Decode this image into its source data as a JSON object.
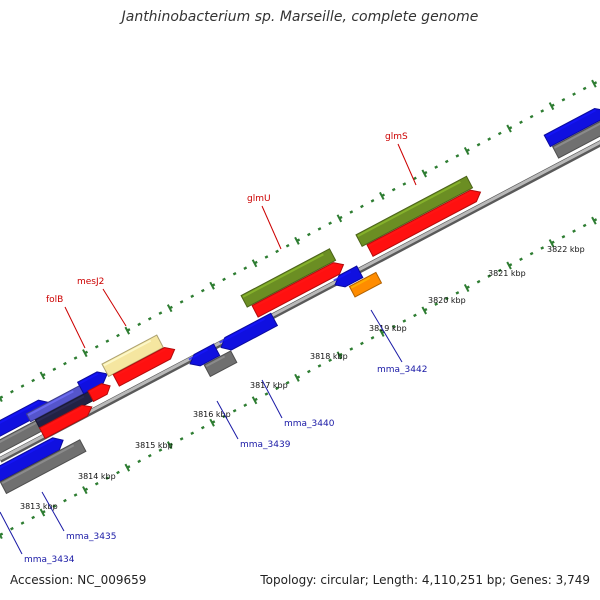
{
  "title": "Janthinobacterium sp. Marseille, complete genome",
  "footer": {
    "accession": "Accession: NC_009659",
    "summary": "Topology: circular; Length: 4,110,251 bp; Genes: 3,749"
  },
  "colors": {
    "background": "#ffffff",
    "backbone": "#8c8c8c",
    "tick": "#2e7d32",
    "gene_label_red": "#cc0000",
    "gene_label_blue": "#1a1aa6",
    "kbp_label": "#111111"
  },
  "scale_labels": [
    "3813 kbp",
    "3814 kbp",
    "3815 kbp",
    "3816 kbp",
    "3817 kbp",
    "3818 kbp",
    "3819 kbp",
    "3820 kbp",
    "3821 kbp",
    "3822 kbp"
  ],
  "named_genes": [
    "folB",
    "mesJ2",
    "glmU",
    "glmS"
  ],
  "locus_tags": [
    "mma_3434",
    "mma_3435",
    "mma_3439",
    "mma_3440",
    "mma_3442"
  ],
  "legend_palette": [
    "#1010e0",
    "#ff1010",
    "#6b8e23",
    "#f5e6a0",
    "#707070",
    "#ff8c00",
    "#5555cc"
  ]
}
